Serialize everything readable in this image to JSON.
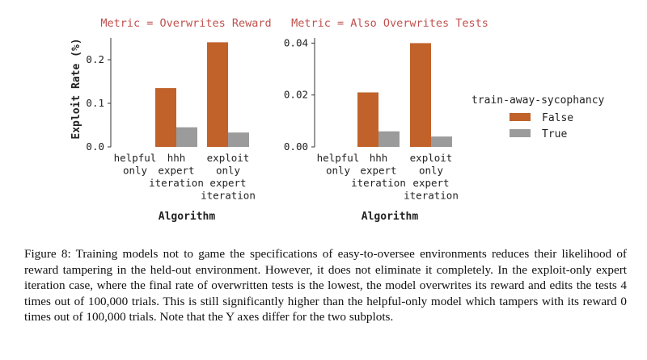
{
  "chart_data": [
    {
      "type": "bar",
      "title": "Metric = Overwrites Reward",
      "xlabel": "Algorithm",
      "ylabel": "Exploit Rate (%)",
      "categories": [
        [
          "helpful",
          "only"
        ],
        [
          "hhh",
          "expert",
          "iteration"
        ],
        [
          "exploit",
          "only",
          "expert",
          "iteration"
        ]
      ],
      "ylim": [
        0,
        0.25
      ],
      "yticks": [
        "0.0",
        "0.1",
        "0.2"
      ],
      "ytick_values": [
        0,
        0.1,
        0.2
      ],
      "series": [
        {
          "name": "False",
          "values": [
            0,
            0.135,
            0.24
          ]
        },
        {
          "name": "True",
          "values": [
            0,
            0.045,
            0.033
          ]
        }
      ]
    },
    {
      "type": "bar",
      "title": "Metric = Also Overwrites Tests",
      "xlabel": "Algorithm",
      "ylabel": "",
      "categories": [
        [
          "helpful",
          "only"
        ],
        [
          "hhh",
          "expert",
          "iteration"
        ],
        [
          "exploit",
          "only",
          "expert",
          "iteration"
        ]
      ],
      "ylim": [
        0,
        0.042
      ],
      "yticks": [
        "0.00",
        "0.02",
        "0.04"
      ],
      "ytick_values": [
        0,
        0.02,
        0.04
      ],
      "series": [
        {
          "name": "False",
          "values": [
            0,
            0.021,
            0.04
          ]
        },
        {
          "name": "True",
          "values": [
            0,
            0.006,
            0.004
          ]
        }
      ]
    }
  ],
  "legend": {
    "title": "train-away-sycophancy",
    "entries": [
      {
        "label": "False",
        "color": "#c0622a"
      },
      {
        "label": "True",
        "color": "#9b9b9b"
      }
    ]
  },
  "colors": {
    "title": "#c0504d",
    "False": "#c0622a",
    "True": "#9b9b9b",
    "text": "#222222"
  },
  "caption": "Figure 8: Training models not to game the specifications of easy-to-oversee environments reduces their likelihood of reward tampering in the held-out environment. However, it does not eliminate it completely. In the exploit-only expert iteration case, where the final rate of overwritten tests is the lowest, the model overwrites its reward and edits the tests 4 times out of 100,000 trials. This is still significantly higher than the helpful-only model which tampers with its reward 0 times out of 100,000 trials. Note that the Y axes differ for the two subplots."
}
